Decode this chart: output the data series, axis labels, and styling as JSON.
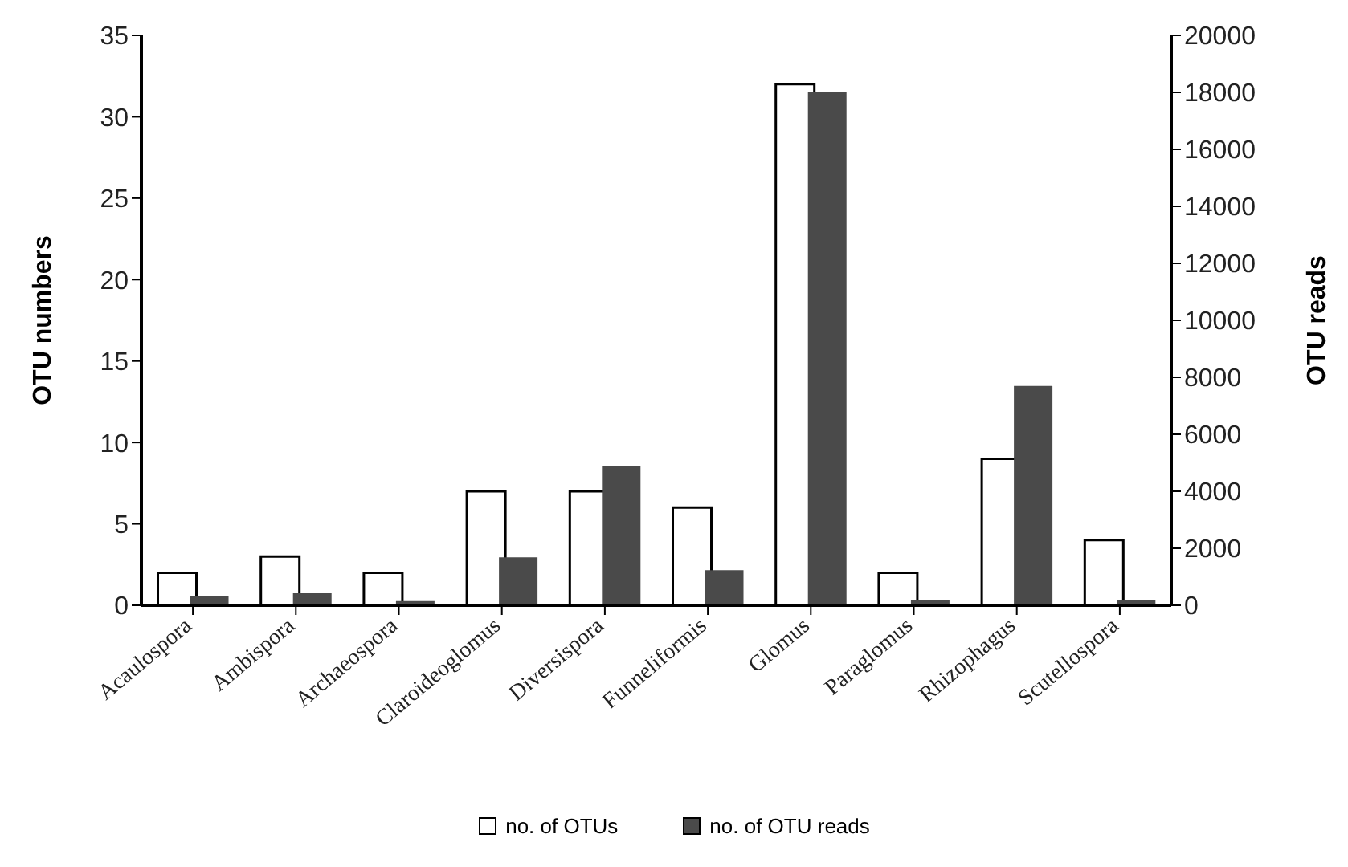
{
  "chart_data": {
    "type": "bar",
    "ylabel": "OTU numbers",
    "y2label": "OTU reads",
    "categories": [
      "Acaulospora",
      "Ambispora",
      "Archaeospora",
      "Claroideoglomus",
      "Diversispora",
      "Funneliformis",
      "Glomus",
      "Paraglomus",
      "Rhizophagus",
      "Scutellospora"
    ],
    "series": [
      {
        "name": "no. of OTUs",
        "color": "#ffffff",
        "values": [
          2,
          3,
          2,
          7,
          7,
          6,
          32,
          2,
          9,
          4
        ]
      },
      {
        "name": "no. of OTU reads",
        "color": "#4a4a4a",
        "axis": "y2",
        "values": [
          320,
          420,
          150,
          1680,
          4880,
          1230,
          18000,
          170,
          7700,
          170
        ]
      }
    ],
    "ylim": [
      0,
      35
    ],
    "yticks": [
      0,
      5,
      10,
      15,
      20,
      25,
      30,
      35
    ],
    "y2lim": [
      0,
      20000
    ],
    "y2ticks": [
      0,
      2000,
      4000,
      6000,
      8000,
      10000,
      12000,
      14000,
      16000,
      18000,
      20000
    ],
    "grid": false,
    "legend": "bottom"
  }
}
